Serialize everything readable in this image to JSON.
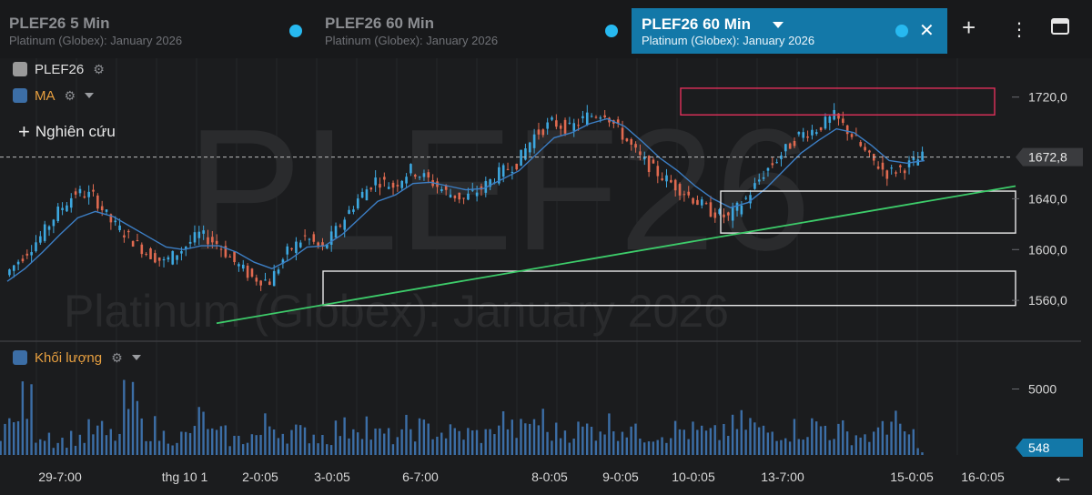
{
  "tabs": [
    {
      "title": "PLEF26 5 Min",
      "subtitle": "Platinum (Globex): January 2026"
    },
    {
      "title": "PLEF26 60 Min",
      "subtitle": "Platinum (Globex): January 2026"
    }
  ],
  "active_tab": {
    "title": "PLEF26 60 Min",
    "subtitle": "Platinum (Globex): January 2026",
    "close": "✕"
  },
  "toolbar": {
    "add": "+",
    "more": "⋮",
    "layout": "▭"
  },
  "legend": {
    "symbol": "PLEF26",
    "symbol_color": "#9a9a9a",
    "ma": "MA",
    "ma_color": "#3c6ea6",
    "volume": "Khối lượng",
    "volume_color": "#3c6ea6"
  },
  "research": "Nghiên cứu",
  "watermark": {
    "symbol": "PLEF26",
    "description": "Platinum (Globex): January 2026"
  },
  "back": "←",
  "chart_data": {
    "type": "candlestick",
    "price_axis": {
      "ticks": [
        1720,
        1640,
        1600,
        1560
      ],
      "tick_labels": [
        "1720,0",
        "1640,0",
        "1600,0",
        "1560,0"
      ],
      "ylim": [
        1530,
        1742
      ]
    },
    "last_price": {
      "value": 1672.8,
      "label": "1672,8"
    },
    "volume_axis": {
      "ticks": [
        5000
      ],
      "tick_labels": [
        "5000"
      ],
      "ylim": [
        0,
        8000
      ]
    },
    "last_volume": {
      "value": 548,
      "label": "548"
    },
    "x_labels": [
      "29-7:00",
      "thg 10 1",
      "2-0:05",
      "3-0:05",
      "6-7:00",
      "8-0:05",
      "9-0:05",
      "10-0:05",
      "13-7:00",
      "15-0:05",
      "16-0:05"
    ],
    "series": [
      {
        "name": "PLEF26",
        "close": [
          1580,
          1595,
          1610,
          1630,
          1645,
          1642,
          1622,
          1610,
          1598,
          1590,
          1600,
          1612,
          1605,
          1590,
          1578,
          1575,
          1598,
          1610,
          1600,
          1620,
          1640,
          1655,
          1650,
          1663,
          1655,
          1645,
          1640,
          1648,
          1660,
          1668,
          1690,
          1700,
          1695,
          1705,
          1708,
          1690,
          1672,
          1660,
          1650,
          1640,
          1630,
          1625,
          1640,
          1660,
          1675,
          1690,
          1695,
          1705,
          1690,
          1672,
          1660,
          1665,
          1672.8
        ]
      },
      {
        "name": "MA",
        "close": [
          1575,
          1585,
          1598,
          1612,
          1625,
          1630,
          1626,
          1618,
          1610,
          1602,
          1600,
          1603,
          1603,
          1598,
          1590,
          1585,
          1592,
          1602,
          1603,
          1612,
          1625,
          1638,
          1643,
          1652,
          1653,
          1650,
          1647,
          1648,
          1655,
          1662,
          1675,
          1688,
          1692,
          1699,
          1703,
          1697,
          1685,
          1672,
          1662,
          1650,
          1640,
          1633,
          1637,
          1648,
          1662,
          1676,
          1686,
          1695,
          1692,
          1682,
          1670,
          1668,
          1670
        ]
      }
    ],
    "volume": [
      3000,
      5200,
      2300,
      1500,
      1800,
      2500,
      2000,
      5200,
      2800,
      2000,
      1900,
      3600,
      2100,
      1600,
      2000,
      3100,
      2400,
      2200,
      1900,
      2700,
      3400,
      2100,
      1900,
      2800,
      2600,
      2300,
      2200,
      2100,
      3500,
      2600,
      3600,
      2400,
      2600,
      2700,
      3200,
      2900,
      2200,
      2300,
      2600,
      2400,
      2100,
      2800,
      3200,
      2400,
      2600,
      2700,
      3000,
      2500,
      2100,
      2000,
      3600,
      2200,
      548
    ],
    "zones": [
      {
        "y": [
          1706,
          1727
        ],
        "color": "#e0305a"
      },
      {
        "y": [
          1646,
          1613
        ],
        "color": "#e8e8e8"
      },
      {
        "y": [
          1583,
          1556
        ],
        "color": "#e8e8e8"
      }
    ],
    "trendline": {
      "y": [
        1542,
        1650
      ],
      "color": "#3dcc6a"
    },
    "colors": {
      "up": "#3da8e0",
      "down": "#e06a50",
      "ma": "#3c7ec4",
      "volume": "#3c6ea6"
    }
  }
}
